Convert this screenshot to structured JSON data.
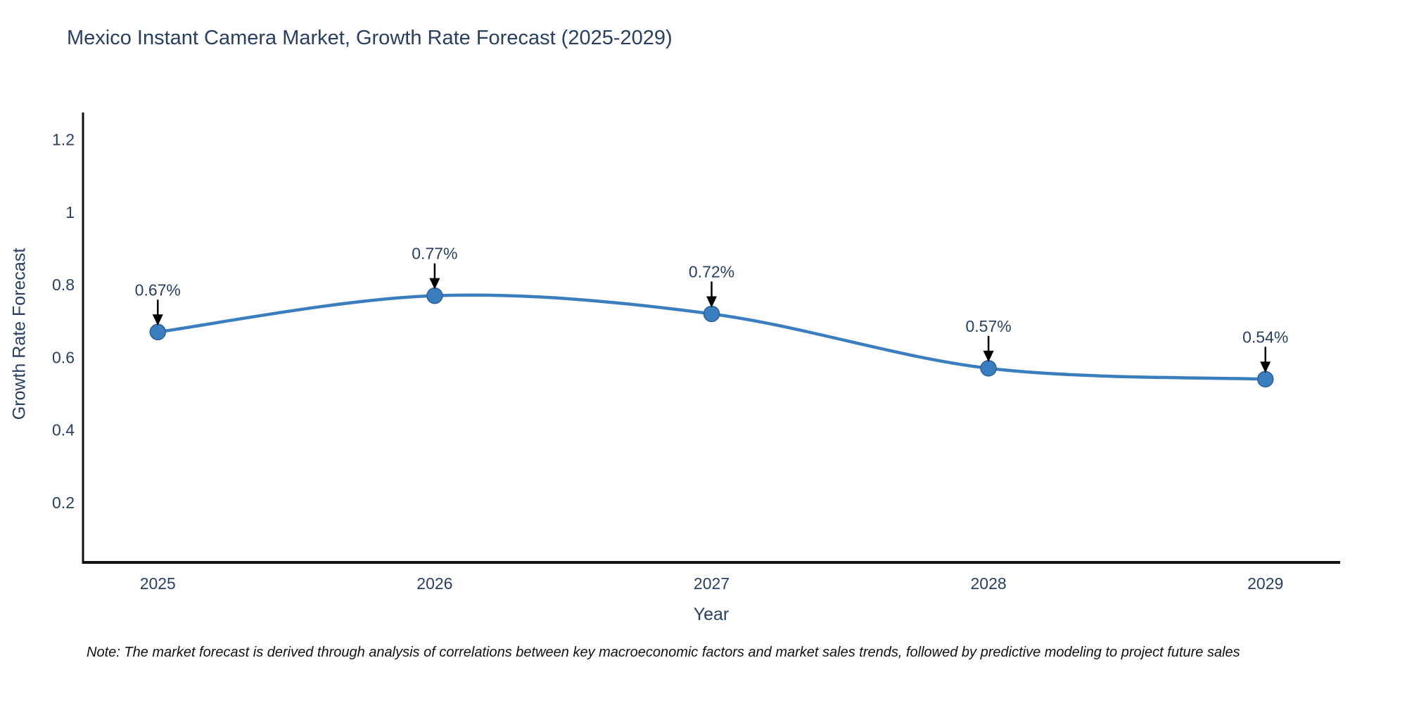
{
  "title": "Mexico Instant Camera Market, Growth Rate Forecast (2025-2029)",
  "note": "Note: The market forecast is derived through analysis of correlations between key macroeconomic factors and market sales trends, followed by predictive modeling to project future sales",
  "colors": {
    "line": "#3a7ebf",
    "marker_fill": "#3a7ebf",
    "marker_edge": "#2a6099",
    "axis_line": "#111111",
    "text": "#2a3f5f",
    "annotation_arrow": "#000000",
    "note_text": "#111111"
  },
  "chart_data": {
    "type": "line",
    "line_shape": "spline",
    "x": [
      2025,
      2026,
      2027,
      2028,
      2029
    ],
    "values": [
      0.67,
      0.77,
      0.72,
      0.57,
      0.54
    ],
    "point_labels": [
      "0.67%",
      "0.77%",
      "0.72%",
      "0.57%",
      "0.54%"
    ],
    "title": "Mexico Instant Camera Market, Growth Rate Forecast (2025-2029)",
    "xlabel": "Year",
    "ylabel": "Growth Rate Forecast",
    "xtick_labels": [
      "2025",
      "2026",
      "2027",
      "2028",
      "2029"
    ],
    "ytick_values": [
      0.2,
      0.4,
      0.6,
      0.8,
      1,
      1.2
    ],
    "xlim": [
      2024.73,
      2029.27
    ],
    "ylim": [
      0.035,
      1.275
    ],
    "grid": false,
    "legend": "none",
    "markers": true,
    "annotations": "value labels with arrows above each point"
  }
}
